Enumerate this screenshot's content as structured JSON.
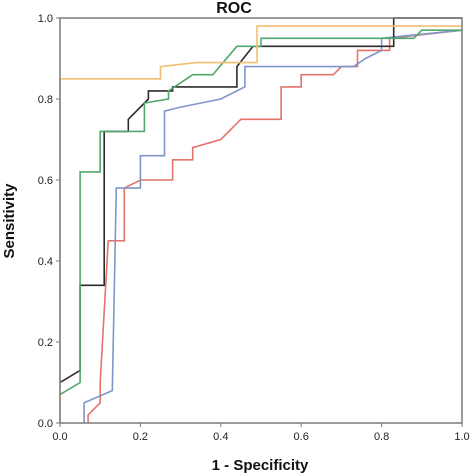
{
  "chart_data": {
    "type": "line",
    "title": "ROC",
    "xlabel": "1 - Specificity",
    "ylabel": "Sensitivity",
    "xlim": [
      0,
      1
    ],
    "ylim": [
      0,
      1
    ],
    "x_ticks": [
      "0.0",
      "0.2",
      "0.4",
      "0.6",
      "0.8",
      "1.0"
    ],
    "y_ticks": [
      "0.0",
      "0.2",
      "0.4",
      "0.6",
      "0.8",
      "1.0"
    ],
    "grid": false,
    "legend": "none",
    "series": [
      {
        "color": "#e4736a",
        "points": [
          [
            0.07,
            0
          ],
          [
            0.07,
            0.02
          ],
          [
            0.1,
            0.05
          ],
          [
            0.1,
            0.1
          ],
          [
            0.12,
            0.45
          ],
          [
            0.16,
            0.45
          ],
          [
            0.16,
            0.58
          ],
          [
            0.2,
            0.6
          ],
          [
            0.28,
            0.6
          ],
          [
            0.28,
            0.65
          ],
          [
            0.33,
            0.65
          ],
          [
            0.33,
            0.68
          ],
          [
            0.4,
            0.7
          ],
          [
            0.45,
            0.75
          ],
          [
            0.55,
            0.75
          ],
          [
            0.55,
            0.83
          ],
          [
            0.6,
            0.83
          ],
          [
            0.6,
            0.86
          ],
          [
            0.68,
            0.86
          ],
          [
            0.7,
            0.88
          ],
          [
            0.74,
            0.88
          ],
          [
            0.74,
            0.92
          ],
          [
            0.82,
            0.92
          ],
          [
            0.82,
            0.95
          ],
          [
            1,
            0.97
          ]
        ]
      },
      {
        "color": "#7f96c8",
        "points": [
          [
            0.06,
            0
          ],
          [
            0.06,
            0.05
          ],
          [
            0.13,
            0.08
          ],
          [
            0.14,
            0.58
          ],
          [
            0.2,
            0.58
          ],
          [
            0.2,
            0.66
          ],
          [
            0.26,
            0.66
          ],
          [
            0.26,
            0.77
          ],
          [
            0.3,
            0.78
          ],
          [
            0.4,
            0.8
          ],
          [
            0.46,
            0.83
          ],
          [
            0.46,
            0.88
          ],
          [
            0.73,
            0.88
          ],
          [
            0.76,
            0.9
          ],
          [
            0.8,
            0.92
          ],
          [
            0.8,
            0.95
          ],
          [
            1,
            0.97
          ]
        ]
      },
      {
        "color": "#2c2c2c",
        "points": [
          [
            0,
            0.1
          ],
          [
            0.05,
            0.13
          ],
          [
            0.05,
            0.34
          ],
          [
            0.11,
            0.34
          ],
          [
            0.11,
            0.72
          ],
          [
            0.17,
            0.72
          ],
          [
            0.17,
            0.75
          ],
          [
            0.22,
            0.8
          ],
          [
            0.22,
            0.82
          ],
          [
            0.28,
            0.82
          ],
          [
            0.28,
            0.83
          ],
          [
            0.44,
            0.83
          ],
          [
            0.44,
            0.88
          ],
          [
            0.48,
            0.93
          ],
          [
            0.83,
            0.93
          ],
          [
            0.83,
            1
          ],
          [
            1,
            1
          ]
        ]
      },
      {
        "color": "#52a86b",
        "points": [
          [
            0,
            0.07
          ],
          [
            0.05,
            0.1
          ],
          [
            0.05,
            0.62
          ],
          [
            0.1,
            0.62
          ],
          [
            0.1,
            0.72
          ],
          [
            0.21,
            0.72
          ],
          [
            0.21,
            0.79
          ],
          [
            0.27,
            0.8
          ],
          [
            0.27,
            0.82
          ],
          [
            0.33,
            0.86
          ],
          [
            0.38,
            0.86
          ],
          [
            0.44,
            0.93
          ],
          [
            0.5,
            0.93
          ],
          [
            0.5,
            0.95
          ],
          [
            0.88,
            0.95
          ],
          [
            0.9,
            0.97
          ],
          [
            1,
            0.97
          ]
        ]
      },
      {
        "color": "#f1be6e",
        "points": [
          [
            0,
            0
          ],
          [
            0,
            0.85
          ],
          [
            0.25,
            0.85
          ],
          [
            0.25,
            0.88
          ],
          [
            0.34,
            0.89
          ],
          [
            0.49,
            0.89
          ],
          [
            0.49,
            0.98
          ],
          [
            1,
            0.98
          ]
        ]
      }
    ]
  }
}
